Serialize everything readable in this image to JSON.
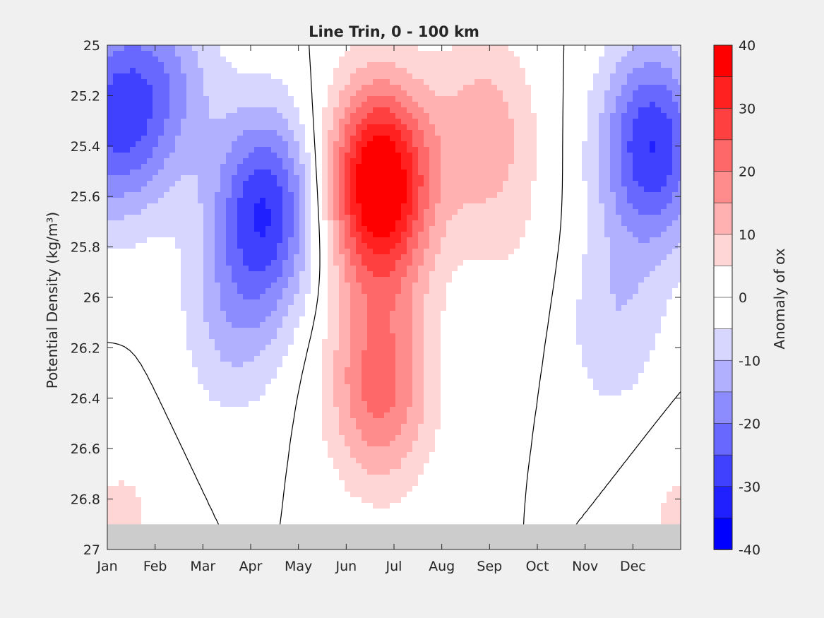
{
  "chart_data": {
    "type": "heatmap",
    "title": "Line Trin, 0 - 100 km",
    "ylabel": "Potential Density (kg/m³)",
    "colorbar_label": "Anomaly of ox",
    "x_ticks": [
      "Jan",
      "Feb",
      "Mar",
      "Apr",
      "May",
      "Jun",
      "Jul",
      "Aug",
      "Sep",
      "Oct",
      "Nov",
      "Dec"
    ],
    "y_ticks": [
      "25",
      "25.2",
      "25.4",
      "25.6",
      "25.8",
      "26",
      "26.2",
      "26.4",
      "26.6",
      "26.8",
      "27"
    ],
    "ylim": [
      25,
      27
    ],
    "y_reversed": true,
    "x_range_months": [
      0,
      12
    ],
    "colorbar_ticks": [
      "40",
      "30",
      "20",
      "10",
      "0",
      "-10",
      "-20",
      "-30",
      "-40"
    ],
    "clim": [
      -40,
      40
    ],
    "contour_levels": [
      -40,
      -35,
      -30,
      -25,
      -20,
      -15,
      -10,
      -5,
      5,
      10,
      15,
      20,
      25,
      30,
      35,
      40
    ],
    "zero_contour": true,
    "no_data_below_density": 26.9,
    "colors": {
      "level_colors": [
        "#0000ff",
        "#2020ff",
        "#4040ff",
        "#6868ff",
        "#8c8cff",
        "#b0b0ff",
        "#d6d6ff",
        "#ffffff",
        "#ffd6d6",
        "#ffb0b0",
        "#ff8c8c",
        "#ff6868",
        "#ff4040",
        "#ff2020",
        "#ff0000"
      ],
      "no_data": "#cccccc",
      "contour_line": "#000000",
      "background": "#f0f0f0"
    },
    "anomaly_field_centers": [
      {
        "month": 0.1,
        "density": 25.3,
        "value": -24
      },
      {
        "month": 1.2,
        "density": 25.15,
        "value": -14
      },
      {
        "month": 3.3,
        "density": 25.65,
        "value": -29
      },
      {
        "month": 2.6,
        "density": 26.1,
        "value": -10
      },
      {
        "month": 5.7,
        "density": 25.55,
        "value": 44
      },
      {
        "month": 5.7,
        "density": 26.35,
        "value": 22
      },
      {
        "month": 7.9,
        "density": 25.35,
        "value": 13
      },
      {
        "month": 8.6,
        "density": 25.9,
        "value": 3
      },
      {
        "month": 11.4,
        "density": 25.4,
        "value": -30
      },
      {
        "month": 10.6,
        "density": 26.1,
        "value": -9
      },
      {
        "month": 12.0,
        "density": 26.9,
        "value": 6
      },
      {
        "month": 0.3,
        "density": 26.9,
        "value": 6
      }
    ]
  }
}
